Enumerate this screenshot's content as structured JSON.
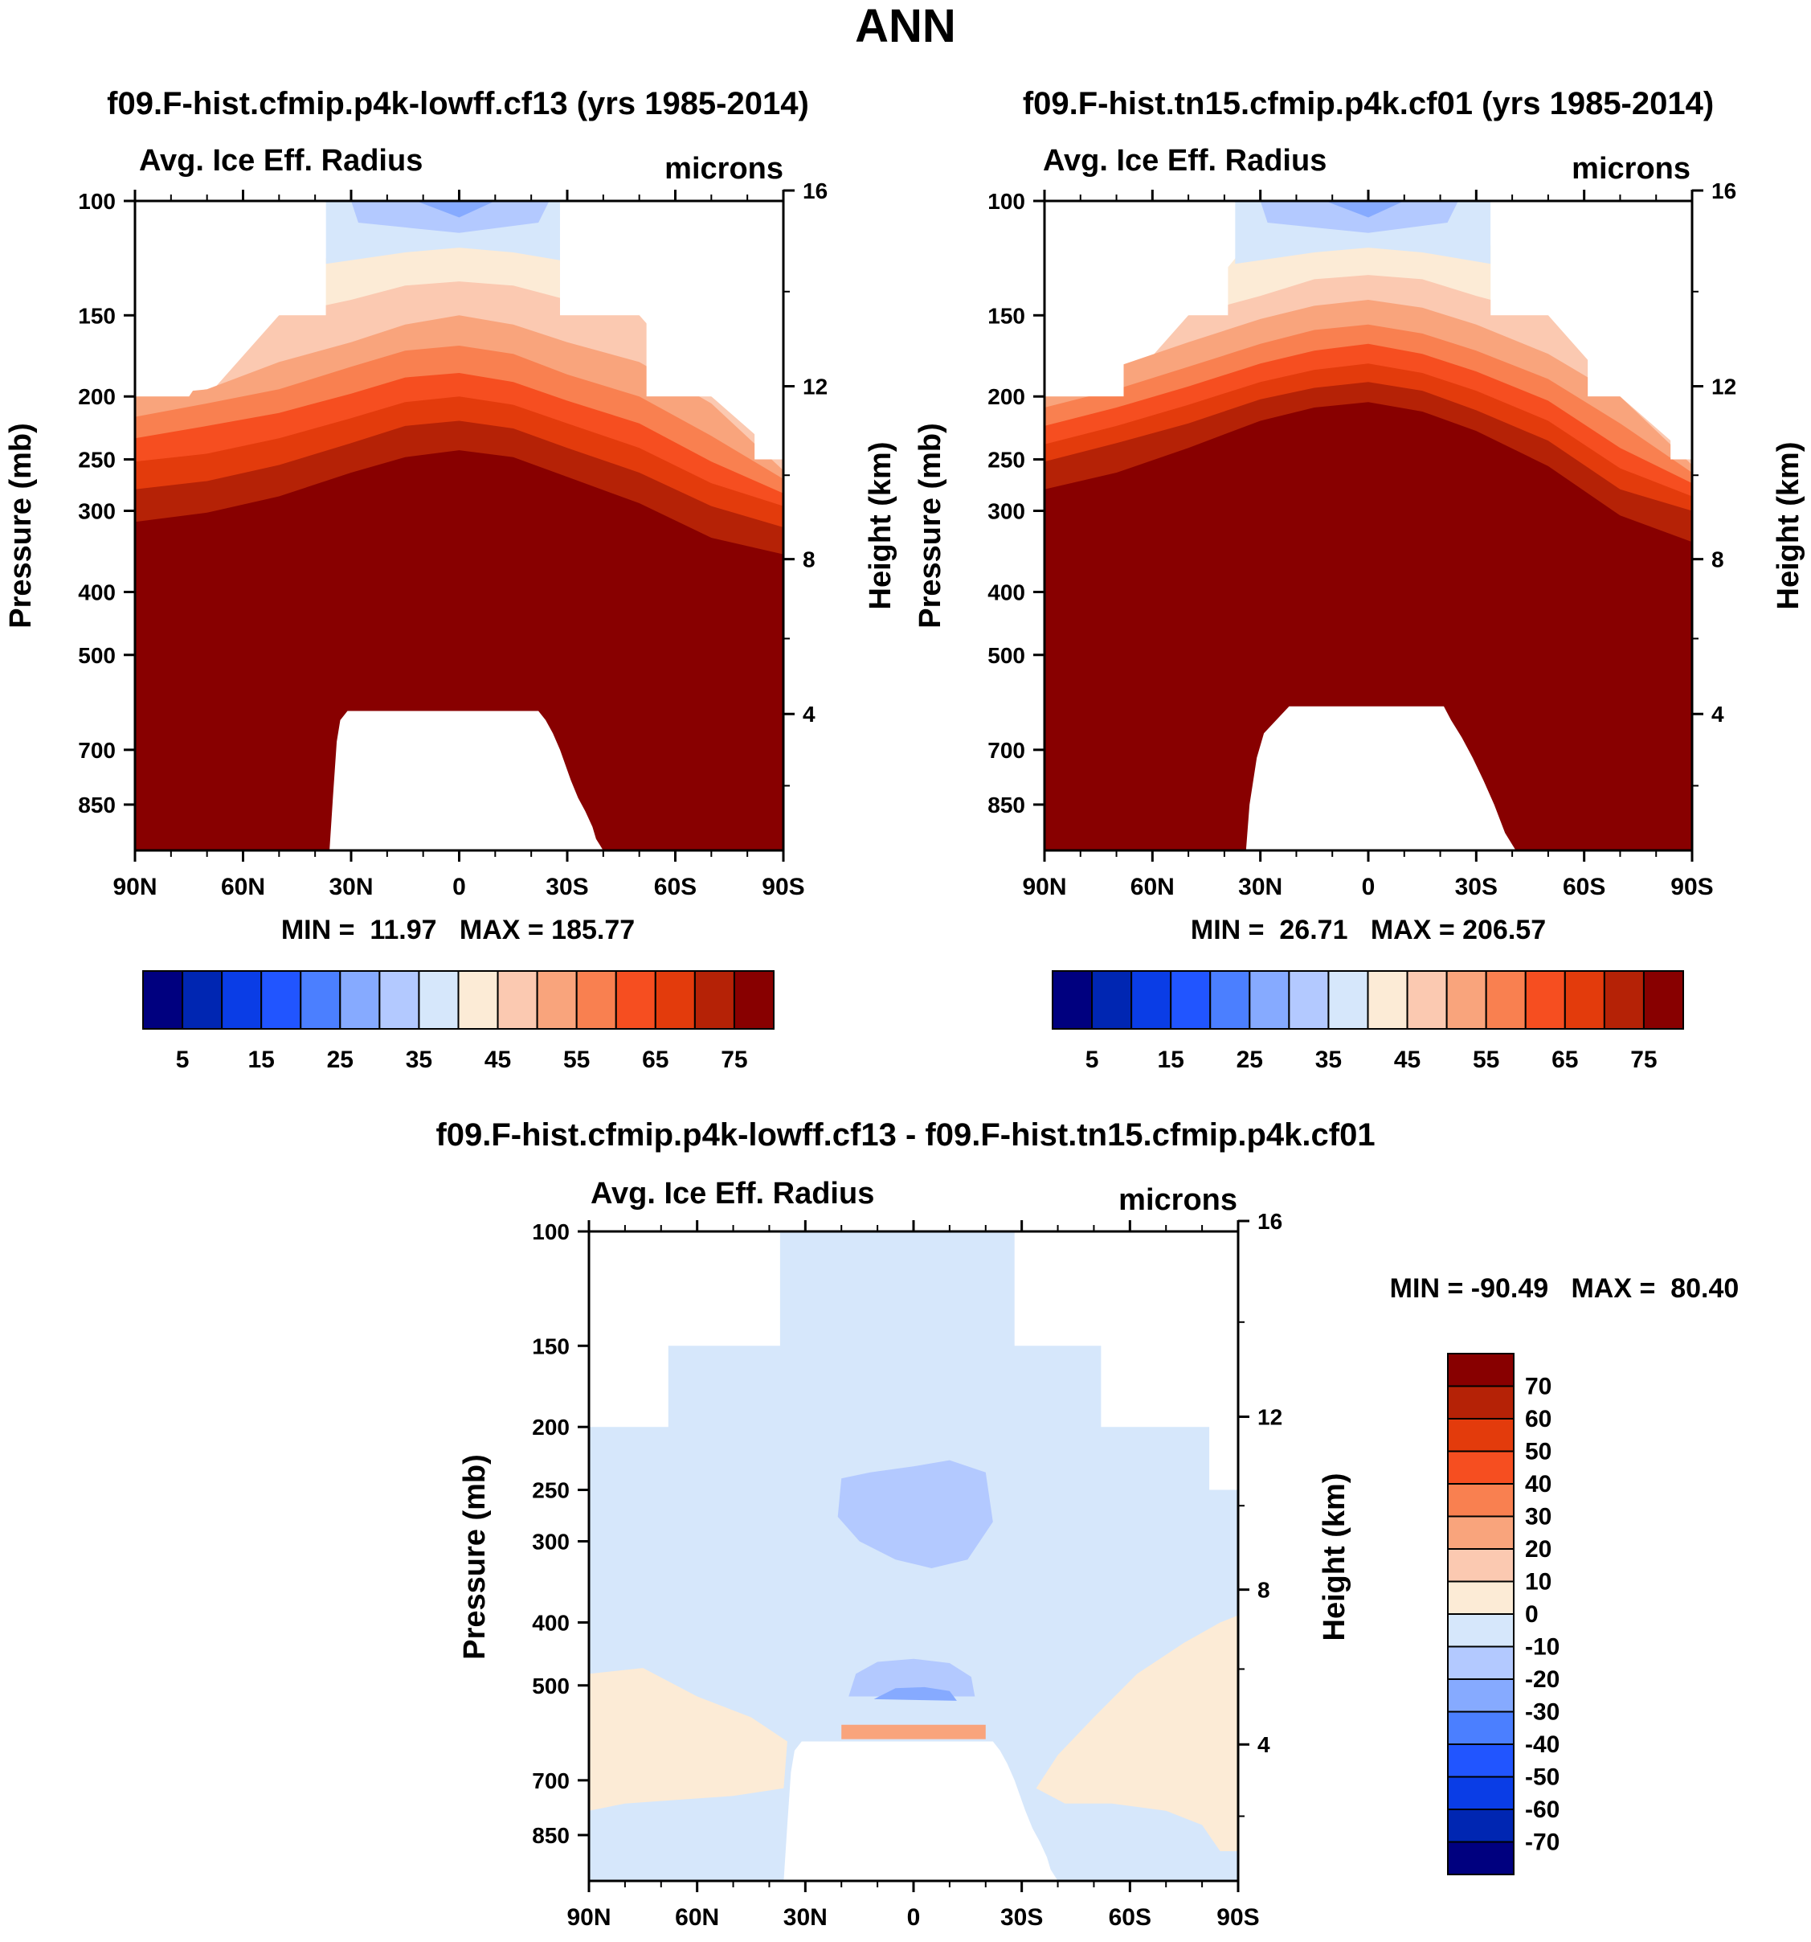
{
  "figure": {
    "title": "ANN"
  },
  "colors": {
    "abs_levels": [
      "#00007f",
      "#0026b2",
      "#0a3de6",
      "#2155ff",
      "#4b7fff",
      "#86aaff",
      "#b3c9ff",
      "#d6e7fb",
      "#fcebd6",
      "#fbc9b1",
      "#f9a47c",
      "#f98050",
      "#f64e20",
      "#e33b0c",
      "#b52206",
      "#880000"
    ],
    "diff_levels": [
      "#00007f",
      "#0026b2",
      "#0a3de6",
      "#2155ff",
      "#4b7fff",
      "#86aaff",
      "#b3c9ff",
      "#d6e7fb",
      "#fcebd6",
      "#fbc9b1",
      "#f9a47c",
      "#f98050",
      "#f64e20",
      "#e33b0c",
      "#b52206",
      "#880000"
    ]
  },
  "chart_data": [
    {
      "type": "heatmap",
      "title": "f09.F-hist.cfmip.p4k-lowff.cf13 (yrs 1985-2014)",
      "left_string": "Avg. Ice Eff. Radius",
      "right_string": "microns",
      "ylabel": "Pressure (mb)",
      "ylabel_right": "Height (km)",
      "x_ticklabels": [
        "90N",
        "60N",
        "30N",
        "0",
        "30S",
        "60S",
        "90S"
      ],
      "y_ticklabels": [
        "100",
        "150",
        "200",
        "250",
        "300",
        "400",
        "500",
        "700",
        "850"
      ],
      "y_right_ticklabels": [
        "16",
        "12",
        "8",
        "4"
      ],
      "xlim": [
        90,
        -90
      ],
      "ylim": [
        100,
        1000
      ],
      "y_scale": "log",
      "stats": "MIN =  11.97   MAX = 185.77",
      "colorbar": {
        "orientation": "horizontal",
        "tick_labels": [
          "5",
          "15",
          "25",
          "35",
          "45",
          "55",
          "65",
          "75"
        ],
        "levels": [
          5,
          10,
          15,
          20,
          25,
          30,
          35,
          40,
          45,
          50,
          55,
          60,
          65,
          70,
          75
        ]
      },
      "cutoff_pressure": [
        [
          90,
          200
        ],
        [
          75,
          200
        ],
        [
          60,
          150
        ],
        [
          37,
          150
        ],
        [
          37,
          100
        ],
        [
          -28,
          100
        ],
        [
          -28,
          150
        ],
        [
          -52,
          150
        ],
        [
          -52,
          200
        ],
        [
          -82,
          200
        ],
        [
          -82,
          250
        ],
        [
          -90,
          250
        ]
      ],
      "contours": {
        "levels": [
          40,
          45,
          50,
          55,
          60,
          65,
          70,
          75
        ],
        "x": [
          90,
          70,
          50,
          30,
          15,
          0,
          -15,
          -30,
          -50,
          -70,
          -90
        ],
        "p": [
          [
            200,
            200,
            150,
            110,
            104,
            100,
            104,
            110,
            150,
            200,
            250
          ],
          [
            200,
            200,
            150,
            142,
            135,
            133,
            135,
            142,
            150,
            200,
            250
          ],
          [
            200,
            195,
            177,
            165,
            155,
            150,
            155,
            165,
            177,
            205,
            260
          ],
          [
            215,
            205,
            195,
            180,
            170,
            167,
            172,
            185,
            200,
            230,
            268
          ],
          [
            232,
            222,
            212,
            198,
            187,
            184,
            190,
            203,
            220,
            252,
            282
          ],
          [
            252,
            245,
            232,
            216,
            204,
            200,
            206,
            220,
            240,
            272,
            295
          ],
          [
            278,
            270,
            255,
            236,
            222,
            218,
            224,
            240,
            262,
            295,
            318
          ],
          [
            312,
            302,
            285,
            262,
            248,
            242,
            248,
            266,
            292,
            330,
            350
          ]
        ]
      },
      "terrain": [
        [
          36,
          1000
        ],
        [
          35,
          820
        ],
        [
          34,
          680
        ],
        [
          33,
          630
        ],
        [
          31,
          610
        ],
        [
          -22,
          610
        ],
        [
          -24,
          630
        ],
        [
          -26,
          660
        ],
        [
          -28,
          700
        ],
        [
          -31,
          780
        ],
        [
          -33,
          830
        ],
        [
          -35,
          870
        ],
        [
          -37,
          920
        ],
        [
          -38,
          960
        ],
        [
          -40,
          1000
        ]
      ]
    },
    {
      "type": "heatmap",
      "title": "f09.F-hist.tn15.cfmip.p4k.cf01 (yrs 1985-2014)",
      "left_string": "Avg. Ice Eff. Radius",
      "right_string": "microns",
      "ylabel": "Pressure (mb)",
      "ylabel_right": "Height (km)",
      "x_ticklabels": [
        "90N",
        "60N",
        "30N",
        "0",
        "30S",
        "60S",
        "90S"
      ],
      "y_ticklabels": [
        "100",
        "150",
        "200",
        "250",
        "300",
        "400",
        "500",
        "700",
        "850"
      ],
      "y_right_ticklabels": [
        "16",
        "12",
        "8",
        "4"
      ],
      "xlim": [
        90,
        -90
      ],
      "ylim": [
        100,
        1000
      ],
      "y_scale": "log",
      "stats": "MIN =  26.71   MAX = 206.57",
      "colorbar": {
        "orientation": "horizontal",
        "tick_labels": [
          "5",
          "15",
          "25",
          "35",
          "45",
          "55",
          "65",
          "75"
        ],
        "levels": [
          5,
          10,
          15,
          20,
          25,
          30,
          35,
          40,
          45,
          50,
          55,
          60,
          65,
          70,
          75
        ]
      },
      "cutoff_pressure": [
        [
          90,
          200
        ],
        [
          68,
          200
        ],
        [
          68,
          150
        ],
        [
          39,
          150
        ],
        [
          39,
          100
        ],
        [
          -34,
          100
        ],
        [
          -34,
          150
        ],
        [
          -61,
          150
        ],
        [
          -61,
          200
        ],
        [
          -84,
          200
        ],
        [
          -84,
          250
        ],
        [
          -90,
          250
        ]
      ],
      "contours": {
        "levels": [
          40,
          45,
          50,
          55,
          60,
          65,
          70,
          75
        ],
        "x": [
          90,
          70,
          50,
          30,
          15,
          0,
          -15,
          -30,
          -50,
          -70,
          -90
        ],
        "p": [
          [
            200,
            200,
            150,
            110,
            104,
            100,
            104,
            110,
            150,
            200,
            250
          ],
          [
            200,
            200,
            150,
            140,
            132,
            130,
            132,
            140,
            150,
            200,
            250
          ],
          [
            200,
            180,
            165,
            152,
            145,
            142,
            146,
            155,
            172,
            200,
            255
          ],
          [
            208,
            195,
            180,
            166,
            158,
            155,
            160,
            170,
            188,
            220,
            262
          ],
          [
            222,
            208,
            193,
            178,
            170,
            166,
            172,
            183,
            203,
            240,
            272
          ],
          [
            237,
            222,
            206,
            190,
            182,
            178,
            184,
            196,
            218,
            258,
            285
          ],
          [
            252,
            236,
            220,
            202,
            194,
            190,
            196,
            210,
            234,
            278,
            300
          ],
          [
            278,
            262,
            240,
            218,
            208,
            204,
            211,
            226,
            256,
            305,
            335
          ]
        ]
      },
      "terrain": [
        [
          34,
          1000
        ],
        [
          33,
          850
        ],
        [
          31,
          720
        ],
        [
          29,
          660
        ],
        [
          22,
          600
        ],
        [
          -21,
          600
        ],
        [
          -23,
          630
        ],
        [
          -26,
          670
        ],
        [
          -29,
          720
        ],
        [
          -32,
          780
        ],
        [
          -35,
          850
        ],
        [
          -38,
          940
        ],
        [
          -41,
          1000
        ]
      ]
    },
    {
      "type": "heatmap",
      "title": "f09.F-hist.cfmip.p4k-lowff.cf13 - f09.F-hist.tn15.cfmip.p4k.cf01",
      "left_string": "Avg. Ice Eff. Radius",
      "right_string": "microns",
      "ylabel": "Pressure (mb)",
      "ylabel_right": "Height (km)",
      "x_ticklabels": [
        "90N",
        "60N",
        "30N",
        "0",
        "30S",
        "60S",
        "90S"
      ],
      "y_ticklabels": [
        "100",
        "150",
        "200",
        "250",
        "300",
        "400",
        "500",
        "700",
        "850"
      ],
      "y_right_ticklabels": [
        "16",
        "12",
        "8",
        "4"
      ],
      "xlim": [
        90,
        -90
      ],
      "ylim": [
        100,
        1000
      ],
      "y_scale": "log",
      "stats": "MIN = -90.49   MAX =  80.40",
      "colorbar": {
        "orientation": "vertical",
        "tick_labels": [
          "70",
          "60",
          "50",
          "40",
          "30",
          "20",
          "10",
          "0",
          "-10",
          "-20",
          "-30",
          "-40",
          "-50",
          "-60",
          "-70"
        ],
        "levels": [
          -70,
          -60,
          -50,
          -40,
          -30,
          -20,
          -10,
          0,
          10,
          20,
          30,
          40,
          50,
          60,
          70
        ]
      },
      "cutoff_pressure": [
        [
          90,
          200
        ],
        [
          68,
          200
        ],
        [
          68,
          150
        ],
        [
          37,
          150
        ],
        [
          37,
          100
        ],
        [
          -28,
          100
        ],
        [
          -28,
          150
        ],
        [
          -52,
          150
        ],
        [
          -52,
          200
        ],
        [
          -82,
          200
        ],
        [
          -82,
          250
        ],
        [
          -90,
          250
        ]
      ],
      "terrain": [
        [
          36,
          1000
        ],
        [
          35,
          820
        ],
        [
          34,
          680
        ],
        [
          33,
          630
        ],
        [
          31,
          610
        ],
        [
          -22,
          610
        ],
        [
          -24,
          630
        ],
        [
          -26,
          660
        ],
        [
          -28,
          700
        ],
        [
          -31,
          780
        ],
        [
          -33,
          830
        ],
        [
          -35,
          870
        ],
        [
          -37,
          920
        ],
        [
          -38,
          960
        ],
        [
          -40,
          1000
        ]
      ],
      "regions": [
        {
          "value": 5,
          "points": [
            [
              90,
              480
            ],
            [
              75,
              470
            ],
            [
              60,
              520
            ],
            [
              45,
              560
            ],
            [
              35,
              610
            ],
            [
              36,
              720
            ],
            [
              50,
              740
            ],
            [
              65,
              750
            ],
            [
              80,
              760
            ],
            [
              90,
              780
            ]
          ]
        },
        {
          "value": 5,
          "points": [
            [
              -34,
              720
            ],
            [
              -40,
              640
            ],
            [
              -50,
              560
            ],
            [
              -62,
              480
            ],
            [
              -75,
              430
            ],
            [
              -85,
              400
            ],
            [
              -90,
              390
            ],
            [
              -90,
              900
            ],
            [
              -85,
              900
            ],
            [
              -80,
              820
            ],
            [
              -70,
              780
            ],
            [
              -55,
              760
            ],
            [
              -42,
              760
            ]
          ]
        },
        {
          "value": -15,
          "points": [
            [
              20,
              240
            ],
            [
              12,
              235
            ],
            [
              0,
              230
            ],
            [
              -10,
              225
            ],
            [
              -20,
              235
            ],
            [
              -22,
              280
            ],
            [
              -15,
              320
            ],
            [
              -5,
              330
            ],
            [
              5,
              320
            ],
            [
              15,
              300
            ],
            [
              21,
              275
            ]
          ]
        },
        {
          "value": -15,
          "points": [
            [
              18,
              520
            ],
            [
              16,
              480
            ],
            [
              10,
              460
            ],
            [
              0,
              455
            ],
            [
              -10,
              462
            ],
            [
              -16,
              485
            ],
            [
              -17,
              520
            ]
          ]
        },
        {
          "value": -25,
          "points": [
            [
              11,
              525
            ],
            [
              5,
              505
            ],
            [
              -3,
              503
            ],
            [
              -10,
              510
            ],
            [
              -12,
              528
            ]
          ]
        }
      ]
    }
  ]
}
